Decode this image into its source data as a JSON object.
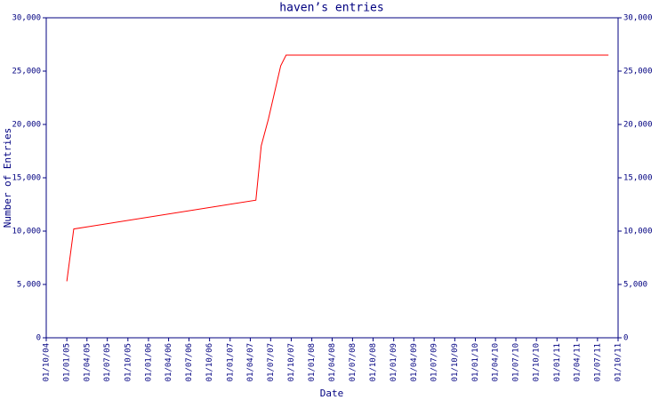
{
  "chart_data": {
    "type": "line",
    "title": "haven’s entries",
    "xlabel": "Date",
    "ylabel": "Number of Entries",
    "x": [
      "01/01/05",
      "01/02/05",
      "26/04/07",
      "20/05/07",
      "21/06/07",
      "15/08/07",
      "08/09/07",
      "19/08/11"
    ],
    "series": [
      {
        "name": "entries",
        "color": "#ff0000",
        "values": [
          5300,
          10200,
          12900,
          18000,
          20500,
          25500,
          26500,
          26500
        ]
      }
    ],
    "xlim": [
      "01/10/04",
      "01/10/11"
    ],
    "xticks": [
      "01/10/04",
      "01/01/05",
      "01/04/05",
      "01/07/05",
      "01/10/05",
      "01/01/06",
      "01/04/06",
      "01/07/06",
      "01/10/06",
      "01/01/07",
      "01/04/07",
      "01/07/07",
      "01/10/07",
      "01/01/08",
      "01/04/08",
      "01/07/08",
      "01/10/08",
      "01/01/09",
      "01/04/09",
      "01/07/09",
      "01/10/09",
      "01/01/10",
      "01/04/10",
      "01/07/10",
      "01/10/10",
      "01/01/11",
      "01/04/11",
      "01/07/11",
      "01/10/11"
    ],
    "ylim": [
      0,
      30000
    ],
    "yticks": [
      0,
      {
        "value": 5000,
        "label": "5,000"
      },
      {
        "value": 10000,
        "label": "10,000"
      },
      {
        "value": 15000,
        "label": "15,000"
      },
      {
        "value": 20000,
        "label": "20,000"
      },
      {
        "value": 25000,
        "label": "25,000"
      },
      {
        "value": 30000,
        "label": "30,000"
      }
    ],
    "axis_color": "#000080"
  }
}
